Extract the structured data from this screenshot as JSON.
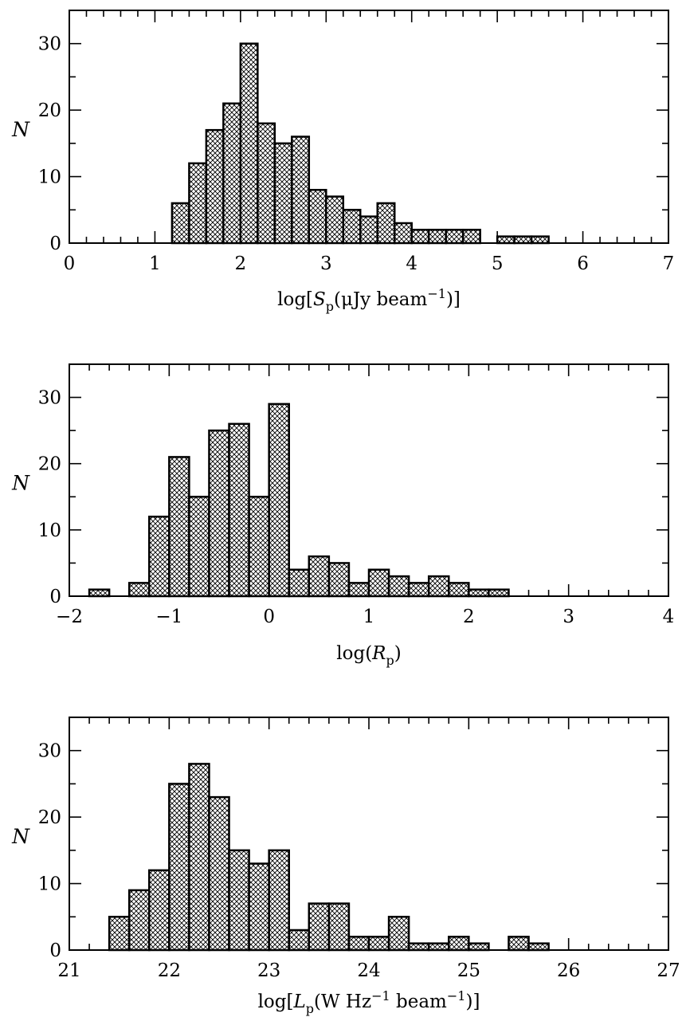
{
  "chart_data": [
    {
      "type": "bar",
      "bin_width": 0.2,
      "xlabel_parts": [
        "log[",
        "S",
        "p",
        "(μJy beam",
        "−1",
        ")]"
      ],
      "ylabel": "N",
      "xlim": [
        0,
        7
      ],
      "ylim": [
        0,
        35
      ],
      "xticks": [
        0,
        1,
        2,
        3,
        4,
        5,
        6,
        7
      ],
      "xtick_labels": [
        "0",
        "1",
        "2",
        "3",
        "4",
        "5",
        "6",
        "7"
      ],
      "yticks": [
        0,
        10,
        20,
        30
      ],
      "ytick_labels": [
        "0",
        "10",
        "20",
        "30"
      ],
      "bin_start": [
        1.2,
        1.4,
        1.6,
        1.8,
        2.0,
        2.2,
        2.4,
        2.6,
        2.8,
        3.0,
        3.2,
        3.4,
        3.6,
        3.8,
        4.0,
        4.2,
        4.4,
        4.6,
        4.8,
        5.0,
        5.2,
        5.4
      ],
      "values": [
        6,
        12,
        17,
        21,
        30,
        18,
        15,
        16,
        8,
        7,
        5,
        4,
        6,
        3,
        2,
        2,
        2,
        2,
        0,
        1,
        1,
        1
      ]
    },
    {
      "type": "bar",
      "bin_width": 0.2,
      "xlabel_parts": [
        "log(",
        "R",
        "p",
        ")"
      ],
      "ylabel": "N",
      "xlim": [
        -2,
        4
      ],
      "ylim": [
        0,
        35
      ],
      "xticks": [
        -2,
        -1,
        0,
        1,
        2,
        3,
        4
      ],
      "xtick_labels": [
        "−2",
        "−1",
        "0",
        "1",
        "2",
        "3",
        "4"
      ],
      "yticks": [
        0,
        10,
        20,
        30
      ],
      "ytick_labels": [
        "0",
        "10",
        "20",
        "30"
      ],
      "bin_start": [
        -1.8,
        -1.6,
        -1.4,
        -1.2,
        -1.0,
        -0.8,
        -0.6,
        -0.4,
        -0.2,
        0.0,
        0.2,
        0.4,
        0.6,
        0.8,
        1.0,
        1.2,
        1.4,
        1.6,
        1.8,
        2.0,
        2.2
      ],
      "values": [
        1,
        0,
        2,
        12,
        21,
        15,
        25,
        26,
        15,
        29,
        4,
        6,
        5,
        2,
        4,
        3,
        2,
        3,
        2,
        1,
        1
      ]
    },
    {
      "type": "bar",
      "bin_width": 0.2,
      "xlabel_parts": [
        "log[",
        "L",
        "p",
        "(W Hz",
        "−1",
        " beam",
        "−1",
        ")]"
      ],
      "ylabel": "N",
      "xlim": [
        21,
        27
      ],
      "ylim": [
        0,
        35
      ],
      "xticks": [
        21,
        22,
        23,
        24,
        25,
        26,
        27
      ],
      "xtick_labels": [
        "21",
        "22",
        "23",
        "24",
        "25",
        "26",
        "27"
      ],
      "yticks": [
        0,
        10,
        20,
        30
      ],
      "ytick_labels": [
        "0",
        "10",
        "20",
        "30"
      ],
      "bin_start": [
        21.4,
        21.6,
        21.8,
        22.0,
        22.2,
        22.4,
        22.6,
        22.8,
        23.0,
        23.2,
        23.4,
        23.6,
        23.8,
        24.0,
        24.2,
        24.4,
        24.6,
        24.8,
        25.0,
        25.2,
        25.4,
        25.6
      ],
      "values": [
        5,
        9,
        12,
        25,
        28,
        23,
        15,
        13,
        15,
        3,
        7,
        7,
        2,
        2,
        5,
        1,
        1,
        2,
        1,
        0,
        2,
        1
      ]
    }
  ]
}
